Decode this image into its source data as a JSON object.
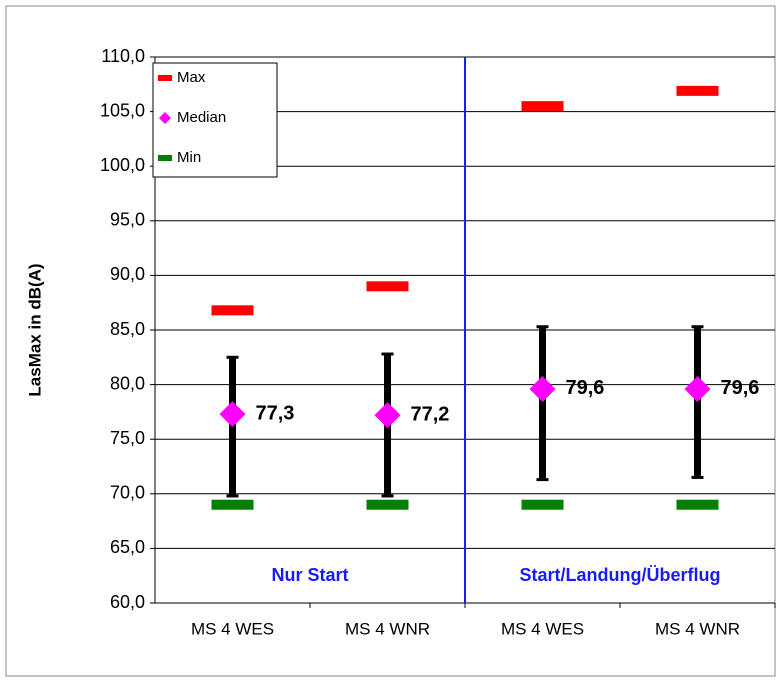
{
  "chart_data": {
    "type": "range",
    "y_label": "LasMax  in dB(A)",
    "categories": [
      "MS 4 WES",
      "MS 4 WNR",
      "MS 4 WES",
      "MS 4 WNR"
    ],
    "group_labels": [
      "Nur Start",
      "Start/Landung/Überflug"
    ],
    "series": [
      {
        "name": "Max",
        "color": "#ff0000",
        "values": [
          86.8,
          89.0,
          105.5,
          106.9
        ]
      },
      {
        "name": "Median",
        "color": "#ff00ff",
        "values": [
          77.3,
          77.2,
          79.6,
          79.6
        ],
        "value_labels": [
          "77,3",
          "77,2",
          "79,6",
          "79,6"
        ]
      },
      {
        "name": "Min",
        "color": "#008000",
        "values": [
          69.0,
          69.0,
          69.0,
          69.0
        ]
      }
    ],
    "error_bars": {
      "color": "#000000",
      "low": [
        69.8,
        69.8,
        71.3,
        71.5
      ],
      "high": [
        82.5,
        82.8,
        85.3,
        85.3
      ]
    },
    "separator_color": "#1a1aff",
    "ylim": [
      60,
      110
    ],
    "yticks": [
      {
        "value": 60,
        "label": "60,0"
      },
      {
        "value": 65,
        "label": "65,0"
      },
      {
        "value": 70,
        "label": "70,0"
      },
      {
        "value": 75,
        "label": "75,0"
      },
      {
        "value": 80,
        "label": "80,0"
      },
      {
        "value": 85,
        "label": "85,0"
      },
      {
        "value": 90,
        "label": "90,0"
      },
      {
        "value": 95,
        "label": "95,0"
      },
      {
        "value": 100,
        "label": "100,0"
      },
      {
        "value": 105,
        "label": "105,0"
      },
      {
        "value": 110,
        "label": "110,0"
      }
    ],
    "grid": true
  }
}
